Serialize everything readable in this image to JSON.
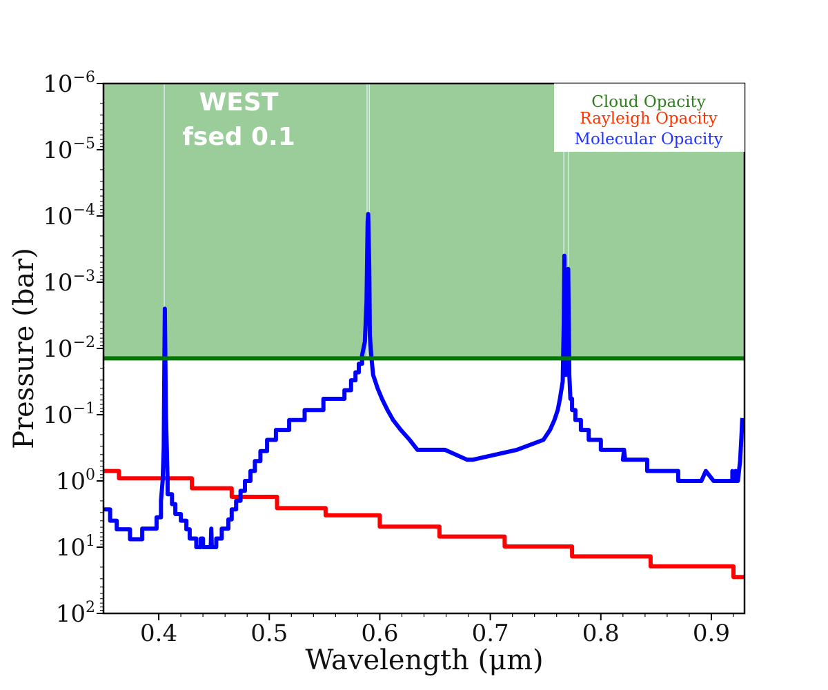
{
  "chart_data": {
    "type": "line",
    "title": "",
    "xlabel": "Wavelength (μm)",
    "ylabel": "Pressure (bar)",
    "xlim": [
      0.35,
      0.93
    ],
    "ylim_log10": [
      -6,
      2
    ],
    "y_scale": "log",
    "y_inverted": true,
    "xticks": [
      {
        "value": 0.4,
        "label": "0.4"
      },
      {
        "value": 0.5,
        "label": "0.5"
      },
      {
        "value": 0.6,
        "label": "0.6"
      },
      {
        "value": 0.7,
        "label": "0.7"
      },
      {
        "value": 0.8,
        "label": "0.8"
      },
      {
        "value": 0.9,
        "label": "0.9"
      }
    ],
    "yticks": [
      {
        "exp": -6,
        "base": "10",
        "sup": "−6"
      },
      {
        "exp": -5,
        "base": "10",
        "sup": "−5"
      },
      {
        "exp": -4,
        "base": "10",
        "sup": "−4"
      },
      {
        "exp": -3,
        "base": "10",
        "sup": "−3"
      },
      {
        "exp": -2,
        "base": "10",
        "sup": "−2"
      },
      {
        "exp": -1,
        "base": "10",
        "sup": "−1"
      },
      {
        "exp": 0,
        "base": "10",
        "sup": "0"
      },
      {
        "exp": 1,
        "base": "10",
        "sup": "1"
      },
      {
        "exp": 2,
        "base": "10",
        "sup": "2"
      }
    ],
    "annotation": [
      "WEST",
      "fsed 0.1"
    ],
    "legend": {
      "placement": "top-right",
      "entries": [
        {
          "label": "Cloud Opacity",
          "color": "#2e7d1e"
        },
        {
          "label": "Rayleigh Opacity",
          "color": "#ff3300"
        },
        {
          "label": "Molecular Opacity",
          "color": "#2233ff"
        }
      ]
    },
    "cloud": {
      "name": "Cloud Opacity",
      "pressure_top_log10": -6,
      "pressure_base_log10": -1.85,
      "fill_color": "#9acd9a",
      "line_color": "#007700"
    },
    "series": [
      {
        "name": "Rayleigh Opacity",
        "color": "#ff0000",
        "step": true,
        "x": [
          0.35,
          0.364,
          0.364,
          0.43,
          0.43,
          0.466,
          0.466,
          0.507,
          0.507,
          0.551,
          0.551,
          0.6,
          0.6,
          0.654,
          0.654,
          0.713,
          0.713,
          0.774,
          0.774,
          0.845,
          0.845,
          0.92,
          0.92,
          0.93
        ],
        "log10_pressure": [
          -0.15,
          -0.15,
          -0.04,
          -0.04,
          0.11,
          0.11,
          0.24,
          0.24,
          0.41,
          0.41,
          0.52,
          0.52,
          0.69,
          0.69,
          0.84,
          0.84,
          0.99,
          0.99,
          1.14,
          1.14,
          1.29,
          1.29,
          1.45,
          1.45
        ]
      },
      {
        "name": "Molecular Opacity",
        "color": "#0000ff",
        "step": true,
        "x": [
          0.35,
          0.356,
          0.356,
          0.362,
          0.362,
          0.374,
          0.374,
          0.385,
          0.385,
          0.398,
          0.398,
          0.402,
          0.402,
          0.4035,
          0.4045,
          0.405,
          0.4055,
          0.4065,
          0.408,
          0.408,
          0.412,
          0.412,
          0.415,
          0.415,
          0.42,
          0.42,
          0.425,
          0.425,
          0.428,
          0.428,
          0.434,
          0.434,
          0.438,
          0.438,
          0.44,
          0.44,
          0.443,
          0.443,
          0.447,
          0.4475,
          0.448,
          0.448,
          0.452,
          0.452,
          0.457,
          0.457,
          0.463,
          0.463,
          0.466,
          0.466,
          0.47,
          0.47,
          0.474,
          0.474,
          0.478,
          0.478,
          0.483,
          0.483,
          0.487,
          0.487,
          0.492,
          0.492,
          0.498,
          0.498,
          0.506,
          0.506,
          0.518,
          0.518,
          0.532,
          0.532,
          0.549,
          0.549,
          0.568,
          0.568,
          0.574,
          0.574,
          0.578,
          0.578,
          0.581,
          0.581,
          0.584,
          0.584,
          0.5865,
          0.588,
          0.589,
          0.5895,
          0.5905,
          0.591,
          0.5925,
          0.594,
          0.594,
          0.598,
          0.598,
          0.602,
          0.602,
          0.607,
          0.607,
          0.612,
          0.612,
          0.619,
          0.619,
          0.627,
          0.627,
          0.634,
          0.634,
          0.659,
          0.659,
          0.679,
          0.679,
          0.684,
          0.684,
          0.724,
          0.724,
          0.748,
          0.748,
          0.754,
          0.754,
          0.758,
          0.758,
          0.761,
          0.761,
          0.763,
          0.763,
          0.7655,
          0.7665,
          0.767,
          0.7675,
          0.7685,
          0.7695,
          0.7705,
          0.771,
          0.7715,
          0.7725,
          0.774,
          0.774,
          0.777,
          0.777,
          0.782,
          0.782,
          0.789,
          0.789,
          0.8,
          0.8,
          0.821,
          0.821,
          0.82,
          0.821,
          0.822,
          0.842,
          0.842,
          0.87,
          0.87,
          0.891,
          0.891,
          0.895,
          0.895,
          0.902,
          0.902,
          0.919,
          0.919,
          0.92,
          0.921,
          0.922,
          0.922,
          0.924,
          0.925,
          0.926,
          0.927,
          0.928,
          0.929,
          0.93
        ],
        "log10_pressure": [
          0.43,
          0.43,
          0.6,
          0.6,
          0.73,
          0.73,
          0.88,
          0.88,
          0.72,
          0.72,
          0.55,
          0.55,
          0.3,
          0.0,
          -0.5,
          -1.6,
          -2.6,
          -1.0,
          0.0,
          0.2,
          0.2,
          0.35,
          0.35,
          0.5,
          0.5,
          0.6,
          0.6,
          0.73,
          0.73,
          0.87,
          0.87,
          1.0,
          1.0,
          0.87,
          0.87,
          1.0,
          1.0,
          1.0,
          1.0,
          0.72,
          1.0,
          1.0,
          1.0,
          0.87,
          0.87,
          0.72,
          0.72,
          0.58,
          0.58,
          0.43,
          0.43,
          0.3,
          0.3,
          0.15,
          0.15,
          0.0,
          0.0,
          -0.15,
          -0.15,
          -0.3,
          -0.3,
          -0.45,
          -0.45,
          -0.62,
          -0.62,
          -0.77,
          -0.77,
          -0.92,
          -0.92,
          -1.07,
          -1.07,
          -1.24,
          -1.24,
          -1.37,
          -1.37,
          -1.52,
          -1.52,
          -1.64,
          -1.64,
          -1.77,
          -1.77,
          -1.9,
          -2.1,
          -2.7,
          -3.9,
          -4.03,
          -3.2,
          -2.2,
          -1.85,
          -1.6,
          -1.6,
          -1.4,
          -1.4,
          -1.24,
          -1.24,
          -1.07,
          -1.07,
          -0.92,
          -0.92,
          -0.77,
          -0.77,
          -0.62,
          -0.62,
          -0.47,
          -0.47,
          -0.47,
          -0.47,
          -0.32,
          -0.32,
          -0.32,
          -0.32,
          -0.47,
          -0.47,
          -0.62,
          -0.62,
          -0.77,
          -0.77,
          -0.92,
          -0.92,
          -1.07,
          -1.07,
          -1.24,
          -1.24,
          -1.5,
          -2.4,
          -3.4,
          -2.2,
          -1.6,
          -2.4,
          -3.2,
          -2.4,
          -1.6,
          -1.24,
          -1.24,
          -1.07,
          -1.07,
          -0.92,
          -0.92,
          -0.77,
          -0.77,
          -0.62,
          -0.62,
          -0.47,
          -0.47,
          -0.32,
          -0.32,
          -0.47,
          -0.32,
          -0.32,
          -0.15,
          -0.15,
          0.0,
          0.0,
          0.0,
          -0.15,
          -0.15,
          0.0,
          0.0,
          0.0,
          -0.15,
          0.0,
          0.0,
          -0.15,
          0.0,
          0.0,
          -0.15,
          -0.3,
          -0.6,
          -0.95
        ]
      }
    ]
  }
}
